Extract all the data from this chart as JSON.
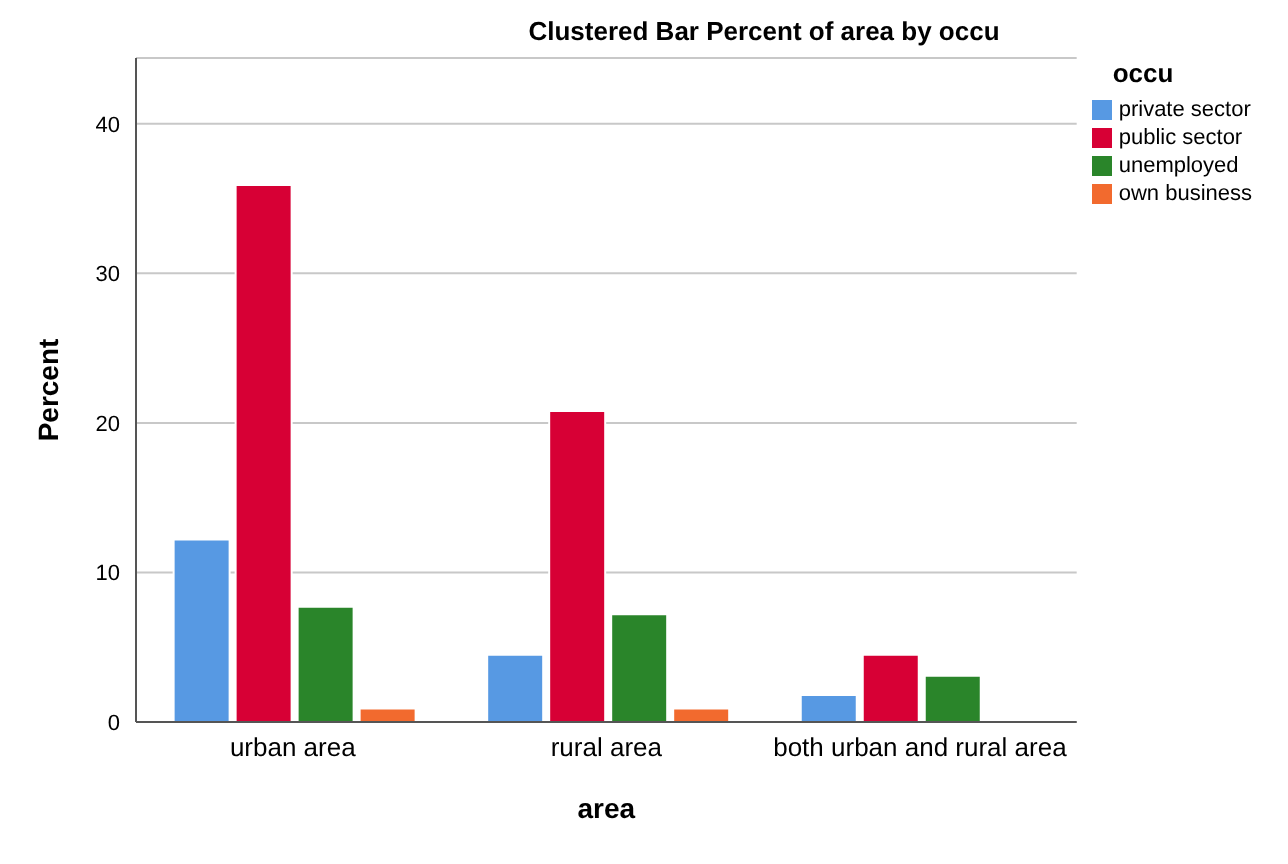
{
  "chart_data": {
    "type": "bar",
    "title": "Clustered Bar Percent of area by occu",
    "xlabel": "area",
    "ylabel": "Percent",
    "legend_title": "occu",
    "categories": [
      "urban area",
      "rural area",
      "both urban and rural area"
    ],
    "series": [
      {
        "name": "private sector",
        "color": "#5799e3",
        "values": [
          12.2,
          4.5,
          1.8
        ]
      },
      {
        "name": "public sector",
        "color": "#d70035",
        "values": [
          35.9,
          20.8,
          4.5
        ]
      },
      {
        "name": "unemployed",
        "color": "#2a852a",
        "values": [
          7.7,
          7.2,
          3.1
        ]
      },
      {
        "name": "own business",
        "color": "#f26a2e",
        "values": [
          0.9,
          0.9,
          null
        ]
      }
    ],
    "ylim": [
      0,
      44.4
    ],
    "yticks": [
      0,
      10,
      20,
      30,
      40
    ],
    "grid": "y",
    "legend": "top right"
  }
}
